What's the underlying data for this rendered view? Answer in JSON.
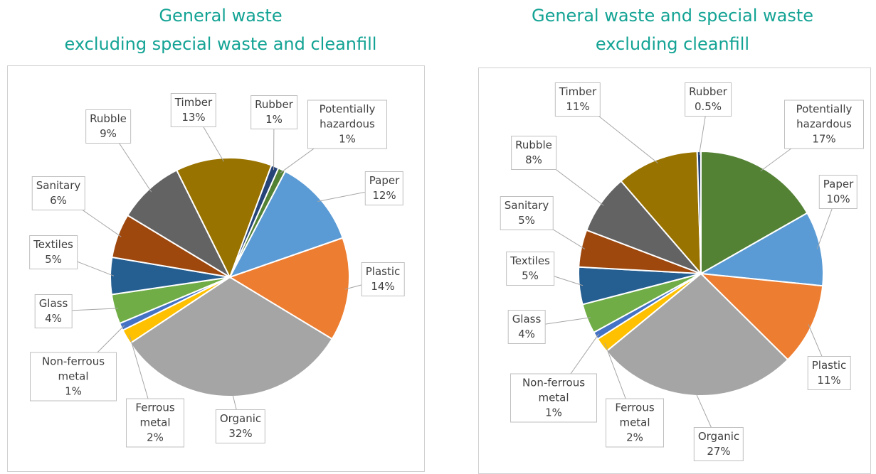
{
  "chart_data": [
    {
      "type": "pie",
      "title": "General waste",
      "subtitle": "excluding special waste and cleanfill",
      "categories": [
        "Potentially hazardous",
        "Paper",
        "Plastic",
        "Organic",
        "Ferrous metal",
        "Non-ferrous metal",
        "Glass",
        "Textiles",
        "Sanitary",
        "Rubble",
        "Timber",
        "Rubber"
      ],
      "values": [
        1,
        12,
        14,
        32,
        2,
        1,
        4,
        5,
        6,
        9,
        13,
        1
      ],
      "value_labels": [
        "1%",
        "12%",
        "14%",
        "32%",
        "2%",
        "1%",
        "4%",
        "5%",
        "6%",
        "9%",
        "13%",
        "1%"
      ],
      "colors": [
        "#548235",
        "#5b9bd5",
        "#ed7d31",
        "#a5a5a5",
        "#ffc000",
        "#4472c4",
        "#70ad47",
        "#255e91",
        "#9e480e",
        "#636363",
        "#997300",
        "#264478"
      ]
    },
    {
      "type": "pie",
      "title": "General waste and special waste",
      "subtitle": "excluding cleanfill",
      "categories": [
        "Potentially hazardous",
        "Paper",
        "Plastic",
        "Organic",
        "Ferrous metal",
        "Non-ferrous metal",
        "Glass",
        "Textiles",
        "Sanitary",
        "Rubble",
        "Timber",
        "Rubber"
      ],
      "values": [
        17,
        10,
        11,
        27,
        2,
        1,
        4,
        5,
        5,
        8,
        11,
        0.5
      ],
      "value_labels": [
        "17%",
        "10%",
        "11%",
        "27%",
        "2%",
        "1%",
        "4%",
        "5%",
        "5%",
        "8%",
        "11%",
        "0.5%"
      ],
      "colors": [
        "#548235",
        "#5b9bd5",
        "#ed7d31",
        "#a5a5a5",
        "#ffc000",
        "#4472c4",
        "#70ad47",
        "#255e91",
        "#9e480e",
        "#636363",
        "#997300",
        "#264478"
      ]
    }
  ]
}
